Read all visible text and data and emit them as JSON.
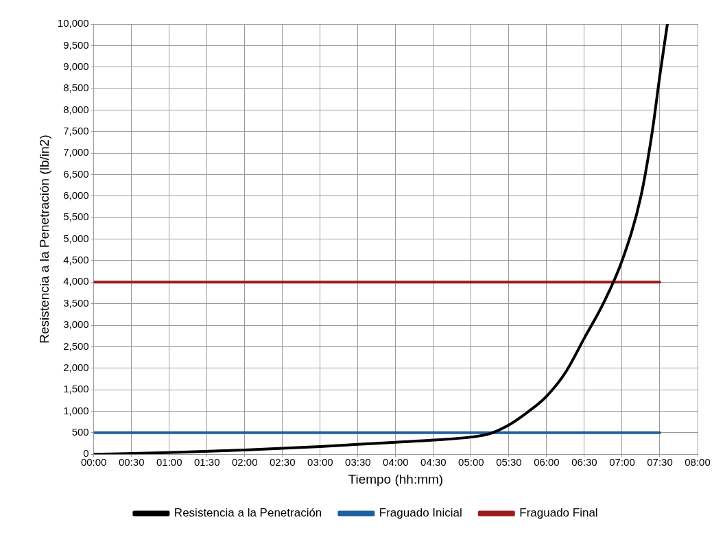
{
  "chart_data": {
    "type": "line",
    "xlabel": "Tiempo (hh:mm)",
    "ylabel": "Resistencia a la Penetración (lb/in2)",
    "xlim": [
      0,
      8
    ],
    "xticks": [
      {
        "value": 0,
        "label": "00:00"
      },
      {
        "value": 0.5,
        "label": "00:30"
      },
      {
        "value": 1,
        "label": "01:00"
      },
      {
        "value": 1.5,
        "label": "01:30"
      },
      {
        "value": 2,
        "label": "02:00"
      },
      {
        "value": 2.5,
        "label": "02:30"
      },
      {
        "value": 3,
        "label": "03:00"
      },
      {
        "value": 3.5,
        "label": "03:30"
      },
      {
        "value": 4,
        "label": "04:00"
      },
      {
        "value": 4.5,
        "label": "04:30"
      },
      {
        "value": 5,
        "label": "05:00"
      },
      {
        "value": 5.5,
        "label": "05:30"
      },
      {
        "value": 6,
        "label": "06:00"
      },
      {
        "value": 6.5,
        "label": "06:30"
      },
      {
        "value": 7,
        "label": "07:00"
      },
      {
        "value": 7.5,
        "label": "07:30"
      },
      {
        "value": 8,
        "label": "08:00"
      }
    ],
    "ylim": [
      0,
      10000
    ],
    "yticks": [
      0,
      500,
      {
        "value": 1000,
        "label": "1,000"
      },
      {
        "value": 1500,
        "label": "1,500"
      },
      {
        "value": 2000,
        "label": "2,000"
      },
      {
        "value": 2500,
        "label": "2,500"
      },
      {
        "value": 3000,
        "label": "3,000"
      },
      {
        "value": 3500,
        "label": "3,500"
      },
      {
        "value": 4000,
        "label": "4,000"
      },
      {
        "value": 4500,
        "label": "4,500"
      },
      {
        "value": 5000,
        "label": "5,000"
      },
      {
        "value": 5500,
        "label": "5,500"
      },
      {
        "value": 6000,
        "label": "6,000"
      },
      {
        "value": 6500,
        "label": "6,500"
      },
      {
        "value": 7000,
        "label": "7,000"
      },
      {
        "value": 7500,
        "label": "7,500"
      },
      {
        "value": 8000,
        "label": "8,000"
      },
      {
        "value": 8500,
        "label": "8,500"
      },
      {
        "value": 9000,
        "label": "9,000"
      },
      {
        "value": 9500,
        "label": "9,500"
      },
      {
        "value": 10000,
        "label": "10,000"
      }
    ],
    "grid": true,
    "legend": "bottom",
    "marker": "none",
    "line_style": "solid",
    "series": [
      {
        "name": "Resistencia a la Penetración",
        "color": "#000000",
        "x": [
          0,
          1,
          2,
          3,
          4,
          4.5,
          5,
          5.25,
          5.5,
          5.75,
          6,
          6.25,
          6.5,
          6.75,
          7,
          7.25,
          7.4,
          7.5,
          7.6
        ],
        "values": [
          0,
          40,
          100,
          180,
          280,
          330,
          400,
          480,
          680,
          980,
          1350,
          1900,
          2700,
          3500,
          4500,
          6000,
          7500,
          8800,
          10000
        ]
      },
      {
        "name": "Fraguado Inicial",
        "color": "#1f5fa0",
        "x": [
          0,
          7.5
        ],
        "values": [
          500,
          500
        ]
      },
      {
        "name": "Fraguado Final",
        "color": "#9b1c1c",
        "x": [
          0,
          7.5
        ],
        "values": [
          4000,
          4000
        ]
      }
    ]
  }
}
